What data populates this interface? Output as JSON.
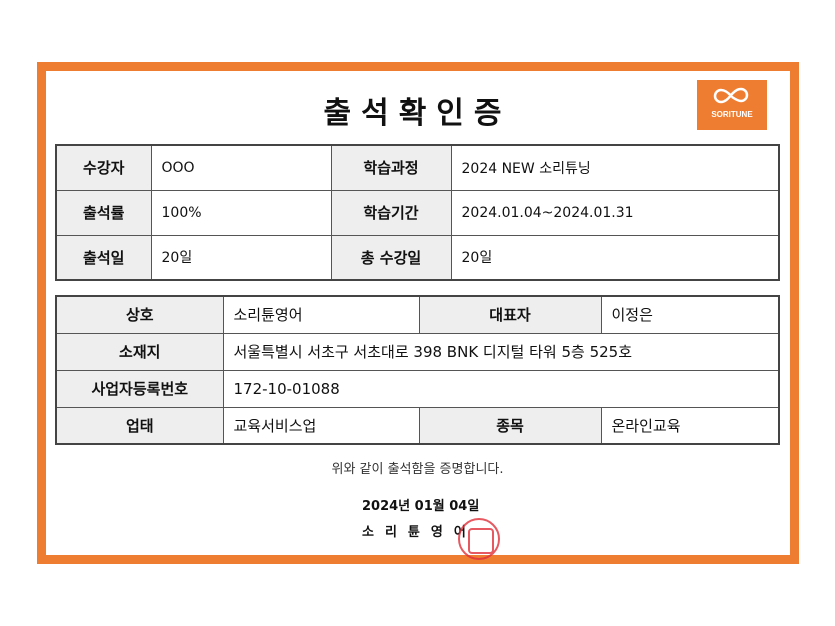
{
  "title": "출석확인증",
  "logo": {
    "text": "SORITUNE",
    "color": "#ef7d31"
  },
  "attendance": {
    "student_label": "수강자",
    "student": "OOO",
    "course_label": "학습과정",
    "course": "2024 NEW 소리튜닝",
    "rate_label": "출석률",
    "rate": "100%",
    "period_label": "학습기간",
    "period": "2024.01.04~2024.01.31",
    "days_label": "출석일",
    "days": "20일",
    "total_label": "총 수강일",
    "total": "20일"
  },
  "company": {
    "name_label": "상호",
    "name": "소리튠영어",
    "ceo_label": "대표자",
    "ceo": "이정은",
    "address_label": "소재지",
    "address": "서울특별시 서초구 서초대로 398 BNK 디지털 타워 5층 525호",
    "regno_label": "사업자등록번호",
    "regno": "172-10-01088",
    "type_label": "업태",
    "type": "교육서비스업",
    "item_label": "종목",
    "item": "온라인교육"
  },
  "certify_text": "위와 같이 출석함을 증명합니다.",
  "date": "2024년 01월 04일",
  "issuer": "소리튠영어",
  "accent_color": "#ef7d31"
}
